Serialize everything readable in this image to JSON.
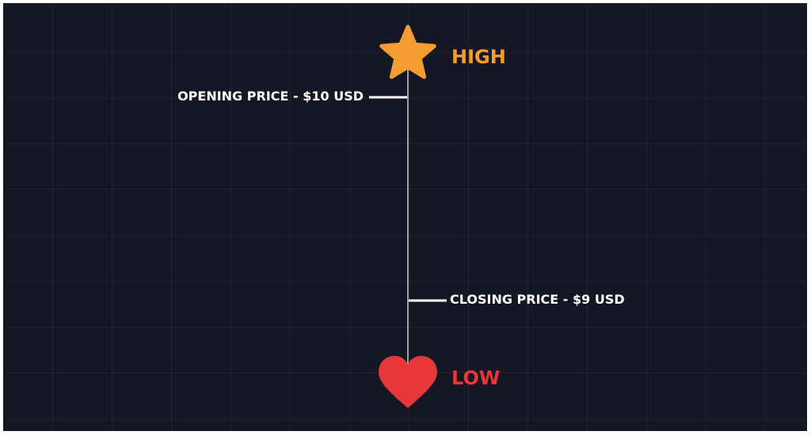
{
  "markers": {
    "high": {
      "label": "HIGH",
      "icon": "star-icon",
      "color": "#F39C31"
    },
    "low": {
      "label": "LOW",
      "icon": "heart-icon",
      "color": "#E8373A"
    }
  },
  "ticks": {
    "opening": {
      "label": "OPENING PRICE - $10 USD"
    },
    "closing": {
      "label": "CLOSING PRICE - $9 USD"
    }
  },
  "colors": {
    "background": "#151824",
    "line": "#C8CAD0",
    "tick": "#FFFFFF"
  }
}
